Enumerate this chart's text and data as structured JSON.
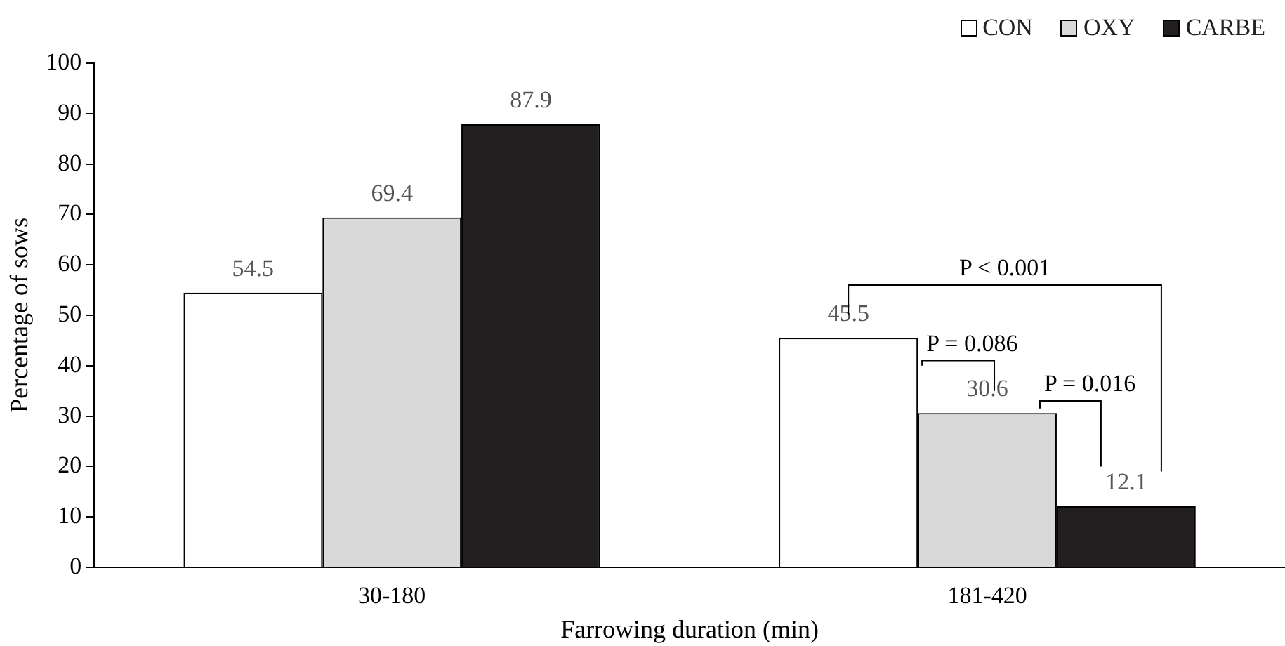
{
  "chart_data": {
    "type": "bar",
    "xlabel": "Farrowing duration (min)",
    "ylabel": "Percentage of sows",
    "categories": [
      "30-180",
      "181-420"
    ],
    "series": [
      {
        "name": "CON",
        "color": "#ffffff",
        "values": [
          54.5,
          45.5
        ]
      },
      {
        "name": "OXY",
        "color": "#d9d9d9",
        "values": [
          69.4,
          30.6
        ]
      },
      {
        "name": "CARBE",
        "color": "#231f20",
        "values": [
          87.9,
          12.1
        ]
      }
    ],
    "ylim": [
      0,
      100
    ],
    "yticks": [
      0,
      10,
      20,
      30,
      40,
      50,
      60,
      70,
      80,
      90,
      100
    ],
    "grid": false,
    "legend": "top right",
    "data_labels": true,
    "annotations": [
      "P < 0.001",
      "P = 0.086",
      "P = 0.016"
    ]
  }
}
